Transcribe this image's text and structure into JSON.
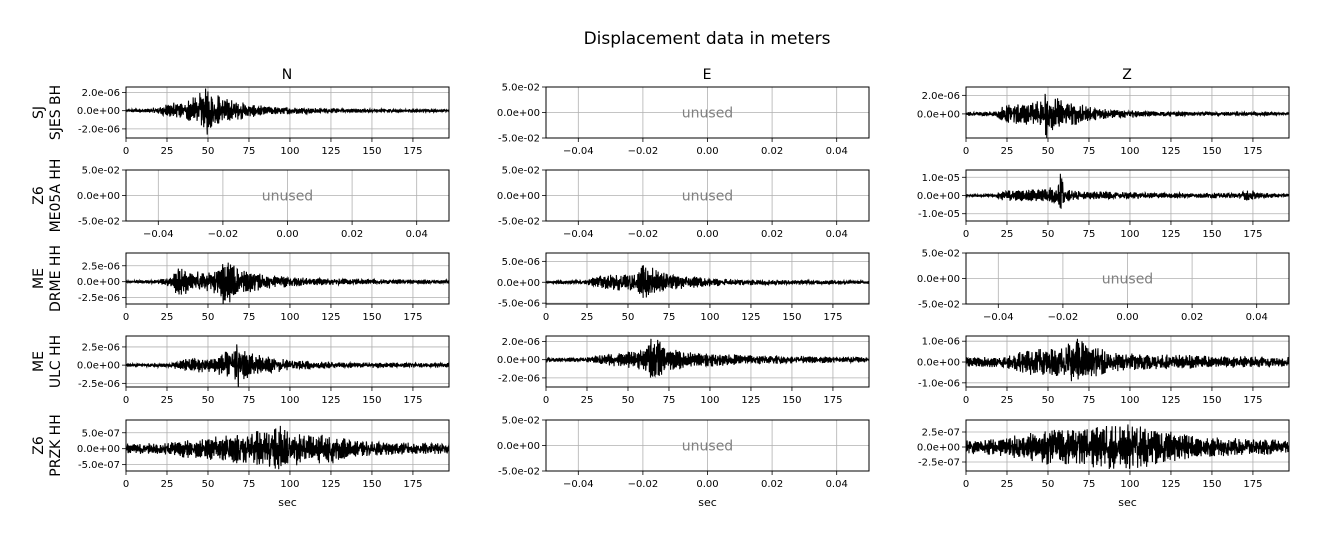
{
  "title": "Displacement data in meters",
  "columns": [
    "N",
    "E",
    "Z"
  ],
  "row_labels": [
    [
      "SJ",
      "SJES BH"
    ],
    [
      "Z6",
      "ME05A HH"
    ],
    [
      "ME",
      "DRME HH"
    ],
    [
      "ME",
      "ULC HH"
    ],
    [
      "Z6",
      "PRZK HH"
    ]
  ],
  "xlabel": "sec",
  "unused_text": "unused",
  "colors": {
    "trace": "#000000",
    "grid": "#b0b0b0",
    "unused_text": "#808080"
  },
  "chart_data": {
    "type": "line",
    "grid": true,
    "time_xticks": [
      0,
      25,
      50,
      75,
      100,
      125,
      150,
      175
    ],
    "time_xlim": [
      0,
      197
    ],
    "unused_xticks": [
      "-0.04",
      "-0.02",
      "0.00",
      "0.02",
      "0.04"
    ],
    "unused_yticks": [
      "-5.0e-02",
      "0.0e+00",
      "5.0e-02"
    ],
    "panels": [
      {
        "row": 0,
        "col": "N",
        "used": true,
        "ylim": [
          -3e-06,
          2.6e-06
        ],
        "yticks": [
          -2e-06,
          0.0,
          2e-06
        ],
        "ytick_labels": [
          "-2.0e-06",
          "0.0e+00",
          "2.0e-06"
        ],
        "envelope": [
          [
            0,
            1.5e-07
          ],
          [
            15,
            2.5e-07
          ],
          [
            22,
            6e-07
          ],
          [
            28,
            1e-06
          ],
          [
            35,
            1e-06
          ],
          [
            42,
            1.6e-06
          ],
          [
            47,
            2.3e-06
          ],
          [
            50,
            2.8e-06
          ],
          [
            53,
            2.2e-06
          ],
          [
            60,
            1.5e-06
          ],
          [
            68,
            1.1e-06
          ],
          [
            75,
            8e-07
          ],
          [
            85,
            5e-07
          ],
          [
            100,
            4e-07
          ],
          [
            130,
            2.5e-07
          ],
          [
            197,
            1.5e-07
          ]
        ]
      },
      {
        "row": 0,
        "col": "E",
        "used": false
      },
      {
        "row": 0,
        "col": "Z",
        "used": true,
        "ylim": [
          -2.6e-06,
          2.9e-06
        ],
        "yticks": [
          0.0,
          2e-06
        ],
        "ytick_labels": [
          "0.0e+00",
          "2.0e-06"
        ],
        "envelope": [
          [
            0,
            2e-07
          ],
          [
            18,
            3e-07
          ],
          [
            22,
            9e-07
          ],
          [
            30,
            1.1e-06
          ],
          [
            40,
            1.2e-06
          ],
          [
            47,
            1.8e-06
          ],
          [
            49,
            3e-06
          ],
          [
            52,
            2e-06
          ],
          [
            58,
            1.6e-06
          ],
          [
            65,
            1.3e-06
          ],
          [
            75,
            8e-07
          ],
          [
            90,
            5e-07
          ],
          [
            110,
            3e-07
          ],
          [
            197,
            1.8e-07
          ]
        ]
      },
      {
        "row": 1,
        "col": "N",
        "used": false
      },
      {
        "row": 1,
        "col": "E",
        "used": false
      },
      {
        "row": 1,
        "col": "Z",
        "used": true,
        "ylim": [
          -1.4e-05,
          1.4e-05
        ],
        "yticks": [
          -1e-05,
          0.0,
          1e-05
        ],
        "ytick_labels": [
          "-1.0e-05",
          "0.0e+00",
          "1.0e-05"
        ],
        "envelope": [
          [
            0,
            7e-07
          ],
          [
            18,
            1e-06
          ],
          [
            22,
            3e-06
          ],
          [
            30,
            3e-06
          ],
          [
            45,
            3.5e-06
          ],
          [
            50,
            5e-06
          ],
          [
            55,
            5e-06
          ],
          [
            58,
            1.5e-05
          ],
          [
            60,
            4e-06
          ],
          [
            70,
            2.5e-06
          ],
          [
            90,
            2e-06
          ],
          [
            120,
            1.5e-06
          ],
          [
            168,
            1.5e-06
          ],
          [
            170,
            3.5e-06
          ],
          [
            175,
            3.5e-06
          ],
          [
            178,
            1.5e-06
          ],
          [
            197,
            1e-06
          ]
        ]
      },
      {
        "row": 2,
        "col": "N",
        "used": true,
        "ylim": [
          -3.5e-06,
          4.5e-06
        ],
        "yticks": [
          -2.5e-06,
          0.0,
          2.5e-06
        ],
        "ytick_labels": [
          "-2.5e-06",
          "0.0e+00",
          "2.5e-06"
        ],
        "envelope": [
          [
            0,
            1.5e-07
          ],
          [
            20,
            3e-07
          ],
          [
            28,
            1e-06
          ],
          [
            32,
            2.5e-06
          ],
          [
            38,
            2e-06
          ],
          [
            50,
            1.5e-06
          ],
          [
            57,
            2.5e-06
          ],
          [
            60,
            4.2e-06
          ],
          [
            63,
            3.5e-06
          ],
          [
            70,
            2e-06
          ],
          [
            85,
            1.2e-06
          ],
          [
            110,
            6e-07
          ],
          [
            150,
            4e-07
          ],
          [
            197,
            3e-07
          ]
        ]
      },
      {
        "row": 2,
        "col": "E",
        "used": true,
        "ylim": [
          -5.2e-06,
          7e-06
        ],
        "yticks": [
          -5e-06,
          0.0,
          5e-06
        ],
        "ytick_labels": [
          "-5.0e-06",
          "0.0e+00",
          "5.0e-06"
        ],
        "envelope": [
          [
            0,
            3e-07
          ],
          [
            25,
            5e-07
          ],
          [
            30,
            1.5e-06
          ],
          [
            40,
            2e-06
          ],
          [
            55,
            2e-06
          ],
          [
            58,
            3.5e-06
          ],
          [
            60,
            5.5e-06
          ],
          [
            63,
            4.5e-06
          ],
          [
            70,
            2.5e-06
          ],
          [
            85,
            1.5e-06
          ],
          [
            110,
            8e-07
          ],
          [
            150,
            6e-07
          ],
          [
            197,
            4e-07
          ]
        ]
      },
      {
        "row": 2,
        "col": "Z",
        "used": false
      },
      {
        "row": 3,
        "col": "N",
        "used": true,
        "ylim": [
          -3e-06,
          4e-06
        ],
        "yticks": [
          -2.5e-06,
          0.0,
          2.5e-06
        ],
        "ytick_labels": [
          "-2.5e-06",
          "0.0e+00",
          "2.5e-06"
        ],
        "envelope": [
          [
            0,
            2e-07
          ],
          [
            28,
            3e-07
          ],
          [
            32,
            8e-07
          ],
          [
            40,
            1e-06
          ],
          [
            55,
            1.2e-06
          ],
          [
            62,
            2e-06
          ],
          [
            67,
            3e-06
          ],
          [
            69,
            4e-06
          ],
          [
            72,
            2.5e-06
          ],
          [
            80,
            1.5e-06
          ],
          [
            100,
            7e-07
          ],
          [
            130,
            4e-07
          ],
          [
            197,
            3e-07
          ]
        ]
      },
      {
        "row": 3,
        "col": "E",
        "used": true,
        "ylim": [
          -3e-06,
          2.6e-06
        ],
        "yticks": [
          -2e-06,
          0.0,
          2e-06
        ],
        "ytick_labels": [
          "-2.0e-06",
          "0.0e+00",
          "2.0e-06"
        ],
        "envelope": [
          [
            0,
            2e-07
          ],
          [
            28,
            3e-07
          ],
          [
            32,
            6e-07
          ],
          [
            45,
            8e-07
          ],
          [
            60,
            1.2e-06
          ],
          [
            64,
            2.5e-06
          ],
          [
            67,
            2.6e-06
          ],
          [
            72,
            1.5e-06
          ],
          [
            85,
            1e-06
          ],
          [
            105,
            7e-07
          ],
          [
            130,
            5e-07
          ],
          [
            197,
            3e-07
          ]
        ]
      },
      {
        "row": 3,
        "col": "Z",
        "used": true,
        "ylim": [
          -1.2e-06,
          1.25e-06
        ],
        "yticks": [
          -1e-06,
          0.0,
          1e-06
        ],
        "ytick_labels": [
          "-1.0e-06",
          "0.0e+00",
          "1.0e-06"
        ],
        "envelope": [
          [
            0,
            2.5e-07
          ],
          [
            25,
            3e-07
          ],
          [
            30,
            5e-07
          ],
          [
            40,
            7e-07
          ],
          [
            55,
            7e-07
          ],
          [
            63,
            1e-06
          ],
          [
            68,
            1.2e-06
          ],
          [
            75,
            8e-07
          ],
          [
            90,
            5e-07
          ],
          [
            110,
            4e-07
          ],
          [
            150,
            3e-07
          ],
          [
            197,
            2.5e-07
          ]
        ]
      },
      {
        "row": 4,
        "col": "N",
        "used": true,
        "ylim": [
          -7e-07,
          9e-07
        ],
        "yticks": [
          -5e-07,
          0.0,
          5e-07
        ],
        "ytick_labels": [
          "-5.0e-07",
          "0.0e+00",
          "5.0e-07"
        ],
        "envelope": [
          [
            0,
            1.5e-07
          ],
          [
            25,
            2e-07
          ],
          [
            35,
            3e-07
          ],
          [
            50,
            3.5e-07
          ],
          [
            60,
            4.5e-07
          ],
          [
            70,
            5e-07
          ],
          [
            85,
            6e-07
          ],
          [
            92,
            8e-07
          ],
          [
            100,
            6e-07
          ],
          [
            110,
            4.5e-07
          ],
          [
            125,
            5e-07
          ],
          [
            140,
            2.5e-07
          ],
          [
            197,
            1.8e-07
          ]
        ]
      },
      {
        "row": 4,
        "col": "E",
        "used": false
      },
      {
        "row": 4,
        "col": "Z",
        "used": true,
        "ylim": [
          -4e-07,
          4.5e-07
        ],
        "yticks": [
          -2.5e-07,
          0.0,
          2.5e-07
        ],
        "ytick_labels": [
          "-2.5e-07",
          "0.0e+00",
          "2.5e-07"
        ],
        "envelope": [
          [
            0,
            1.2e-07
          ],
          [
            20,
            1.5e-07
          ],
          [
            35,
            2.2e-07
          ],
          [
            50,
            3e-07
          ],
          [
            70,
            3.2e-07
          ],
          [
            85,
            3.8e-07
          ],
          [
            100,
            4e-07
          ],
          [
            115,
            3.5e-07
          ],
          [
            125,
            2.6e-07
          ],
          [
            145,
            1.8e-07
          ],
          [
            170,
            1.5e-07
          ],
          [
            197,
            1.2e-07
          ]
        ]
      }
    ]
  }
}
